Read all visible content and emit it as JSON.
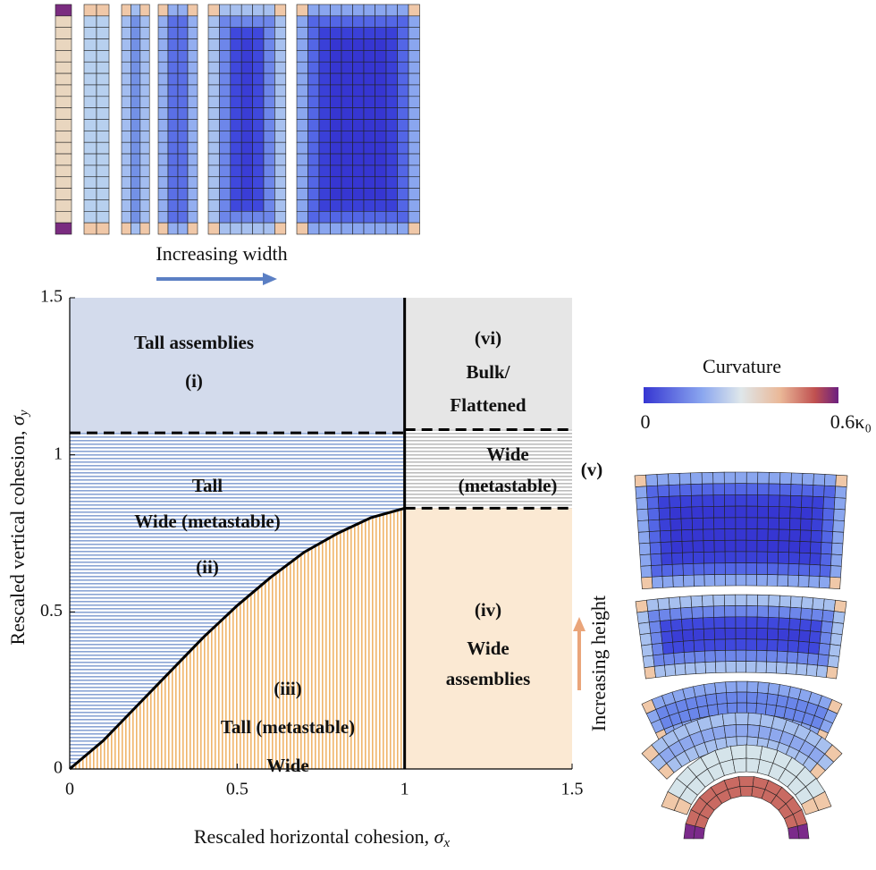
{
  "chart_data": {
    "type": "phase",
    "xlabel": {
      "text": "Rescaled horizontal cohesion, ",
      "symbol": "σ",
      "sub": "x"
    },
    "ylabel": {
      "text": "Rescaled vertical cohesion, ",
      "symbol": "σ",
      "sub": "y"
    },
    "xlim": [
      0,
      1.5
    ],
    "ylim": [
      0,
      1.5
    ],
    "xticks": [
      0,
      0.5,
      1,
      1.5
    ],
    "yticks": [
      0,
      0.5,
      1,
      1.5
    ],
    "boundaries": {
      "vertical_x": 1,
      "tall_y": 1.07,
      "bulk_y": 1.08,
      "wide_y": 0.83,
      "curve": {
        "x": [
          0,
          0.1,
          0.2,
          0.3,
          0.4,
          0.5,
          0.6,
          0.7,
          0.8,
          0.9,
          1
        ],
        "y": [
          0,
          0.09,
          0.2,
          0.31,
          0.42,
          0.52,
          0.61,
          0.69,
          0.75,
          0.8,
          0.83
        ]
      }
    },
    "regions": [
      {
        "lines": [
          "Tall assemblies",
          "(i)"
        ]
      },
      {
        "lines": [
          "Tall",
          "Wide (metastable)",
          "(ii)"
        ]
      },
      {
        "lines": [
          "(iii)",
          "Tall (metastable)",
          "Wide"
        ]
      },
      {
        "lines": [
          "(iv)",
          "Wide",
          "assemblies"
        ]
      },
      {
        "lines": [
          "Wide",
          "(metastable)"
        ]
      },
      {
        "lines": [
          "(vi)",
          "Bulk/",
          "Flattened"
        ]
      }
    ],
    "outside_label": "(v)",
    "insets": {
      "width_caption": "Increasing width",
      "height_caption": "Increasing height",
      "colorbar_title": "Curvature",
      "colorbar_min": "0",
      "colorbar_max": "0.6κ₀"
    }
  }
}
